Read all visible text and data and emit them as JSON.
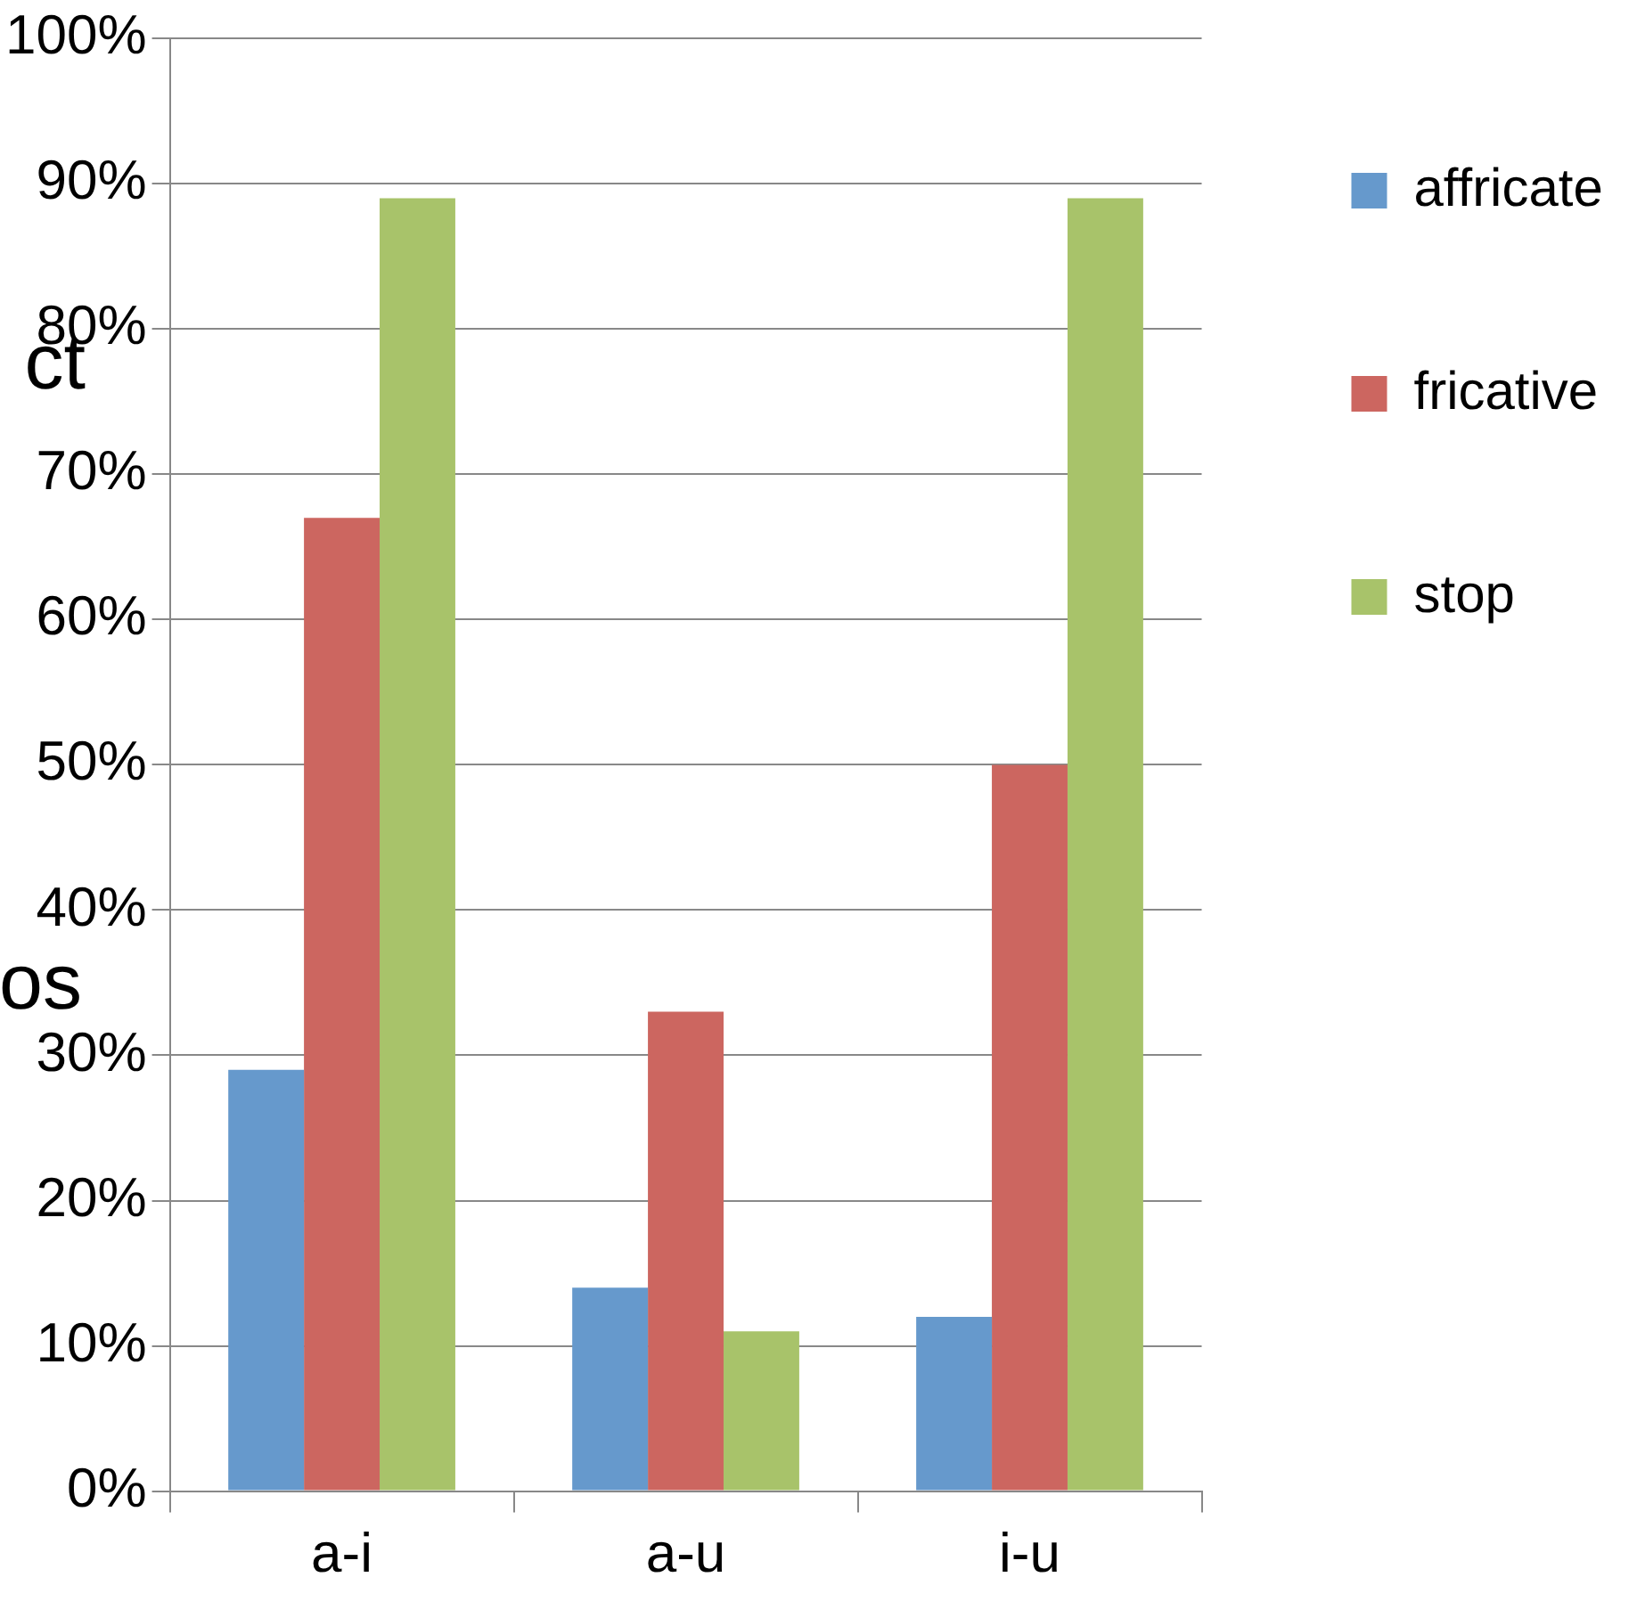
{
  "chart_data": {
    "type": "bar",
    "categories": [
      "a-i",
      "a-u",
      "i-u"
    ],
    "series": [
      {
        "name": "affricate",
        "color": "#6699cc",
        "values": [
          29,
          14,
          12
        ]
      },
      {
        "name": "fricative",
        "color": "#cc6660",
        "values": [
          67,
          33,
          50
        ]
      },
      {
        "name": "stop",
        "color": "#a8c36a",
        "values": [
          89,
          11,
          89
        ]
      }
    ],
    "ylim": [
      0,
      100
    ],
    "yticks": [
      {
        "value": 0,
        "label": "0%"
      },
      {
        "value": 10,
        "label": "10%"
      },
      {
        "value": 20,
        "label": "20%"
      },
      {
        "value": 30,
        "label": "30%"
      },
      {
        "value": 40,
        "label": "40%"
      },
      {
        "value": 50,
        "label": "50%"
      },
      {
        "value": 60,
        "label": "60%"
      },
      {
        "value": 70,
        "label": "70%"
      },
      {
        "value": 80,
        "label": "80%"
      },
      {
        "value": 90,
        "label": "90%"
      },
      {
        "value": 100,
        "label": "100%"
      }
    ],
    "grid": "y",
    "legend": "top right",
    "annotations": [
      "ct",
      "os"
    ]
  }
}
